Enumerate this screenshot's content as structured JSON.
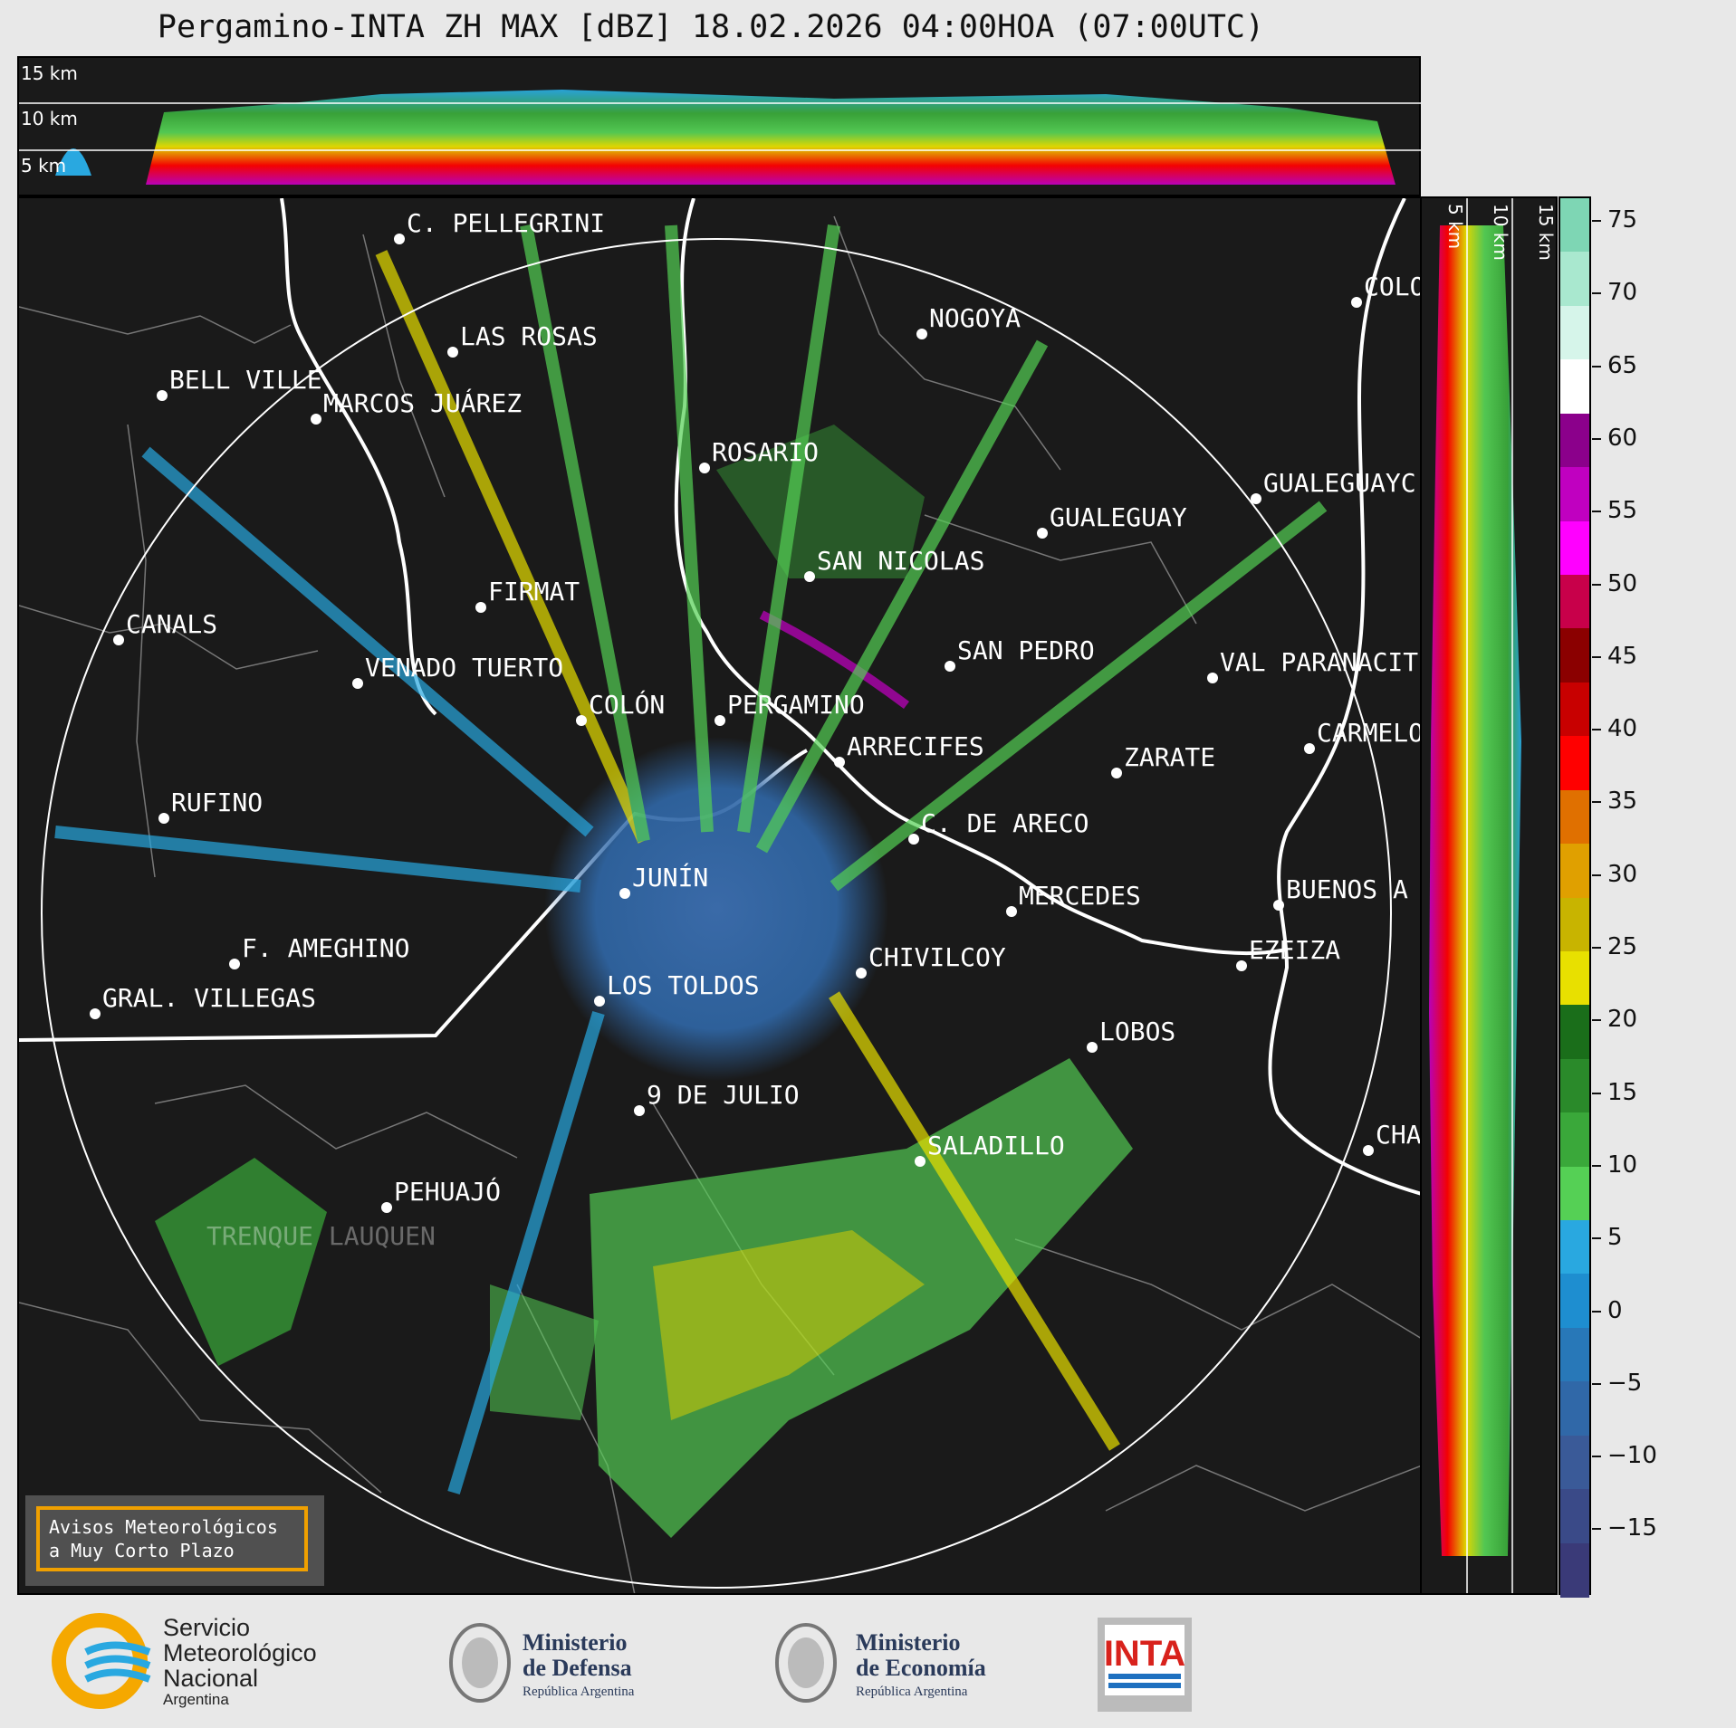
{
  "title": "Pergamino-INTA ZH MAX [dBZ] 18.02.2026 04:00HOA (07:00UTC)",
  "top_panel": {
    "alt_labels": [
      "15 km",
      "10 km",
      "5 km"
    ]
  },
  "side_panel": {
    "alt_labels": [
      "5 km",
      "10 km",
      "15 km"
    ]
  },
  "colorbar": {
    "ticks": [
      "75",
      "70",
      "65",
      "60",
      "55",
      "50",
      "45",
      "40",
      "35",
      "30",
      "25",
      "20",
      "15",
      "10",
      "5",
      "0",
      "−5",
      "−10",
      "−15"
    ],
    "colors": [
      "#7ed6b4",
      "#a9e8cf",
      "#d6f5ea",
      "#ffffff",
      "#8b008b",
      "#c000c0",
      "#ff00ff",
      "#c8004a",
      "#8b0000",
      "#c80000",
      "#ff0000",
      "#e07000",
      "#e0a000",
      "#c8b400",
      "#e8e000",
      "#1a6e1a",
      "#2a8a2a",
      "#3aa83a",
      "#55d055",
      "#29a8e0",
      "#1e8ed0",
      "#2878b8",
      "#3068a8",
      "#3a5a98",
      "#3a4a88",
      "#3a3a78"
    ]
  },
  "cities": [
    {
      "name": "C. PELLEGRINI"
    },
    {
      "name": "LAS ROSAS"
    },
    {
      "name": "NOGOYA"
    },
    {
      "name": "COLO"
    },
    {
      "name": "BELL VILLE"
    },
    {
      "name": "MARCOS JUÁREZ"
    },
    {
      "name": "ROSARIO"
    },
    {
      "name": "GUALEGUAYC"
    },
    {
      "name": "GUALEGUAY"
    },
    {
      "name": "SAN NICOLAS"
    },
    {
      "name": "FIRMAT"
    },
    {
      "name": "CANALS"
    },
    {
      "name": "SAN PEDRO"
    },
    {
      "name": "VENADO TUERTO"
    },
    {
      "name": "VAL PARANACIT"
    },
    {
      "name": "COLÓN"
    },
    {
      "name": "PERGAMINO"
    },
    {
      "name": "CARMELO"
    },
    {
      "name": "ARRECIFES"
    },
    {
      "name": "ZARATE"
    },
    {
      "name": "RUFINO"
    },
    {
      "name": "C. DE ARECO"
    },
    {
      "name": "JUNÍN"
    },
    {
      "name": "BUENOS A"
    },
    {
      "name": "MERCEDES"
    },
    {
      "name": "F. AMEGHINO"
    },
    {
      "name": "EZEIZA"
    },
    {
      "name": "CHIVILCOY"
    },
    {
      "name": "LOS TOLDOS"
    },
    {
      "name": "GRAL. VILLEGAS"
    },
    {
      "name": "LOBOS"
    },
    {
      "name": "9 DE JULIO"
    },
    {
      "name": "CHA"
    },
    {
      "name": "SALADILLO"
    },
    {
      "name": "PEHUAJÓ"
    },
    {
      "name": "TRENQUE LAUQUEN"
    }
  ],
  "warning": {
    "line1": "Avisos Meteorológicos",
    "line2": "a Muy Corto Plazo"
  },
  "footer": {
    "smn": {
      "line1": "Servicio",
      "line2": "Meteorológico",
      "line3": "Nacional",
      "line4": "Argentina"
    },
    "defensa": {
      "line1": "Ministerio",
      "line2": "de Defensa",
      "line3": "República Argentina"
    },
    "economia": {
      "line1": "Ministerio",
      "line2": "de Economía",
      "line3": "República Argentina"
    },
    "inta": "INTA"
  }
}
